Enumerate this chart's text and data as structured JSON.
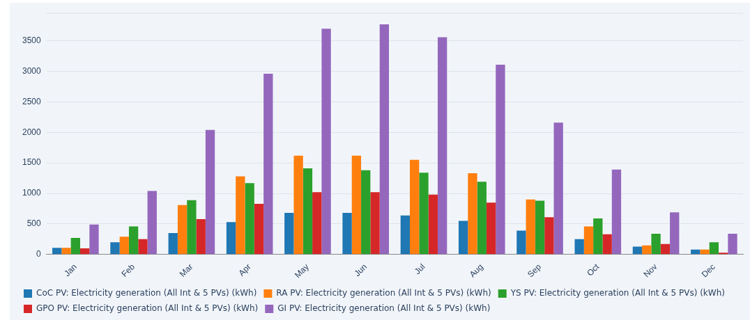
{
  "chart_data": {
    "type": "bar",
    "categories": [
      "Jan",
      "Feb",
      "Mar",
      "Apr",
      "May",
      "Jun",
      "Jul",
      "Aug",
      "Sep",
      "Oct",
      "Nov",
      "Dec"
    ],
    "series": [
      {
        "name": "CoC PV: Electricity generation (All Int & 5 PVs) (kWh)",
        "color": "#1f77b4",
        "values": [
          110,
          200,
          350,
          530,
          680,
          680,
          640,
          550,
          390,
          250,
          130,
          80
        ]
      },
      {
        "name": "RA PV: Electricity generation (All Int & 5 PVs) (kWh)",
        "color": "#ff7f0e",
        "values": [
          110,
          290,
          810,
          1280,
          1620,
          1620,
          1550,
          1330,
          900,
          460,
          150,
          80
        ]
      },
      {
        "name": "YS PV: Electricity generation (All Int & 5 PVs) (kWh)",
        "color": "#2ca02c",
        "values": [
          270,
          460,
          890,
          1170,
          1410,
          1380,
          1340,
          1190,
          880,
          590,
          340,
          200
        ]
      },
      {
        "name": "GPO PV: Electricity generation (All Int & 5 PVs) (kWh)",
        "color": "#d62728",
        "values": [
          100,
          250,
          580,
          830,
          1020,
          1020,
          980,
          850,
          610,
          330,
          170,
          30
        ]
      },
      {
        "name": "GI PV: Electricity generation (All Int & 5 PVs) (kWh)",
        "color": "#9467bd",
        "values": [
          490,
          1040,
          2040,
          2960,
          3700,
          3770,
          3560,
          3110,
          2160,
          1390,
          690,
          340
        ]
      }
    ],
    "ylim": [
      0,
      3950
    ],
    "yticks": [
      0,
      500,
      1000,
      1500,
      2000,
      2500,
      3000,
      3500
    ],
    "grid": "y",
    "legend": "bottom"
  }
}
